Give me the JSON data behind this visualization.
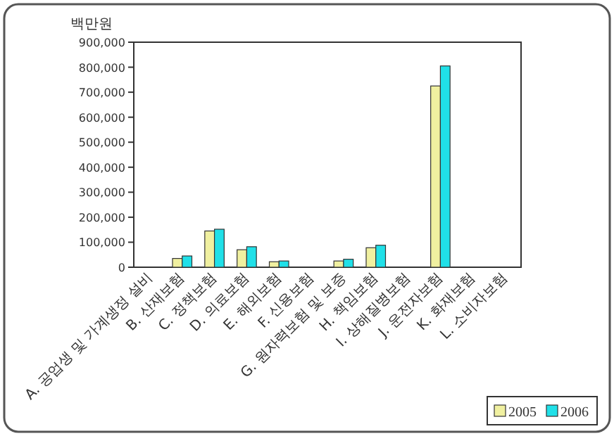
{
  "chart_data": {
    "type": "bar",
    "ylabel": "백만원",
    "categories": [
      "A. 공업생 및 가계생정 설비",
      "B. 산재보험",
      "C. 정책보험",
      "D. 의료보험",
      "E. 해외보험",
      "F. 신용보험",
      "G. 원자력보험 및 보증",
      "H. 책임보험",
      "I. 상해질병보험",
      "J. 운전자보험",
      "K. 화재보험",
      "L. 소비자보험"
    ],
    "series": [
      {
        "name": "2005",
        "color": "#f0f0a0",
        "values": [
          null,
          35000,
          145000,
          70000,
          22000,
          null,
          25000,
          78000,
          null,
          725000,
          null,
          null
        ]
      },
      {
        "name": "2006",
        "color": "#20e0e8",
        "values": [
          null,
          45000,
          152000,
          82000,
          25000,
          null,
          32000,
          88000,
          null,
          805000,
          null,
          null
        ]
      }
    ],
    "ylim": [
      0,
      900000
    ],
    "yticks": [
      0,
      {
        "value": 100000,
        "label": "100,000"
      },
      {
        "value": 200000,
        "label": "200,000"
      },
      {
        "value": 300000,
        "label": "300,000"
      },
      {
        "value": 400000,
        "label": "400,000"
      },
      {
        "value": 500000,
        "label": "500,000"
      },
      {
        "value": 600000,
        "label": "600,000"
      },
      {
        "value": 700000,
        "label": "700,000"
      },
      {
        "value": 800000,
        "label": "800,000"
      },
      {
        "value": 900000,
        "label": "900,000"
      }
    ],
    "grid": false,
    "legend": "bottom right"
  }
}
